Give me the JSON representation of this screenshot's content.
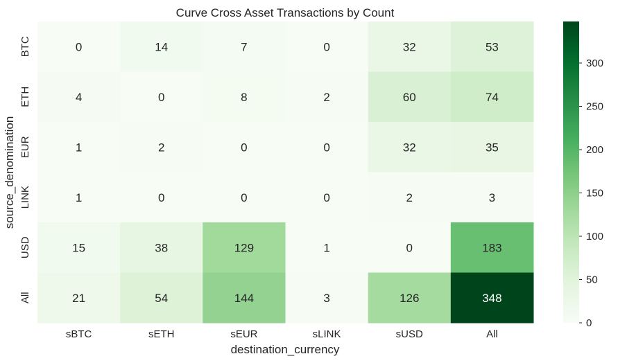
{
  "chart_data": {
    "type": "heatmap",
    "title": "Curve Cross Asset Transactions by Count",
    "xlabel": "destination_currency",
    "ylabel": "source_denomination",
    "x_categories": [
      "sBTC",
      "sETH",
      "sEUR",
      "sLINK",
      "sUSD",
      "All"
    ],
    "y_categories": [
      "BTC",
      "ETH",
      "EUR",
      "LINK",
      "USD",
      "All"
    ],
    "values": [
      [
        0,
        14,
        7,
        0,
        32,
        53
      ],
      [
        4,
        0,
        8,
        2,
        60,
        74
      ],
      [
        1,
        2,
        0,
        0,
        32,
        35
      ],
      [
        1,
        0,
        0,
        0,
        2,
        3
      ],
      [
        15,
        38,
        129,
        1,
        0,
        183
      ],
      [
        21,
        54,
        144,
        3,
        126,
        348
      ]
    ],
    "colorscale": "Greens",
    "vmin": 0,
    "vmax": 348,
    "colorbar_ticks": [
      0,
      50,
      100,
      150,
      200,
      250,
      300
    ],
    "colorbar_tick_labels": [
      "0",
      "50",
      "100",
      "150",
      "200",
      "250",
      "300"
    ],
    "colors": {
      "low": "#f7fcf5",
      "high": "#00441b",
      "text_dark": "#262626",
      "text_light": "#ffffff"
    }
  }
}
